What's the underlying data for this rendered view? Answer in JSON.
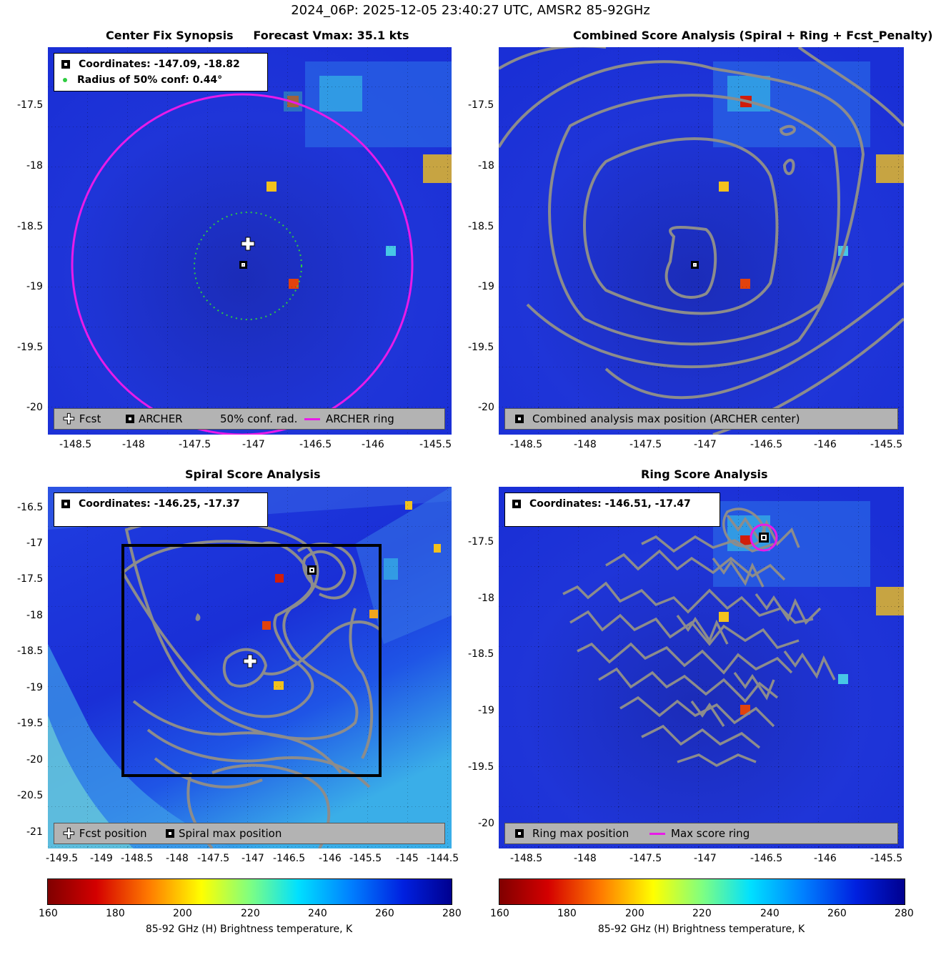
{
  "title": "2024_06P: 2025-12-05 23:40:27 UTC, AMSR2 85-92GHz",
  "colors": {
    "background_field": "#1a2fd6",
    "contour": "#8c8c8c",
    "archer_ring": "#e81be8",
    "conf_circle": "#2ecc40",
    "legend_bg": "#b3b3b3"
  },
  "panels": {
    "synopsis": {
      "title": "Center Fix Synopsis     Forecast Vmax: 35.1 kts",
      "coords_text": "Coordinates: -147.09, -18.82",
      "radius_text": "Radius of 50% conf: 0.44°",
      "legend": {
        "fcst": "Fcst",
        "archer": "ARCHER",
        "conf": "50% conf. rad.",
        "ring": "ARCHER ring"
      },
      "x_ticks": [
        "-148.5",
        "-148",
        "-147.5",
        "-147",
        "-146.5",
        "-146",
        "-145.5"
      ],
      "y_ticks": [
        "-17.5",
        "-18",
        "-18.5",
        "-19",
        "-19.5",
        "-20"
      ]
    },
    "combined": {
      "title": "Combined Score Analysis (Spiral + Ring + Fcst_Penalty)",
      "legend": {
        "max": "Combined analysis max position (ARCHER center)"
      },
      "x_ticks": [
        "-148.5",
        "-148",
        "-147.5",
        "-147",
        "-146.5",
        "-146",
        "-145.5"
      ],
      "y_ticks": [
        "-17.5",
        "-18",
        "-18.5",
        "-19",
        "-19.5",
        "-20"
      ]
    },
    "spiral": {
      "title": "Spiral Score Analysis",
      "coords_text": "Coordinates: -146.25, -17.37",
      "legend": {
        "fcst": "Fcst position",
        "max": "Spiral max position"
      },
      "x_ticks": [
        "-149.5",
        "-149",
        "-148.5",
        "-148",
        "-147.5",
        "-147",
        "-146.5",
        "-146",
        "-145.5",
        "-145",
        "-144.5"
      ],
      "y_ticks": [
        "-16.5",
        "-17",
        "-17.5",
        "-18",
        "-18.5",
        "-19",
        "-19.5",
        "-20",
        "-20.5",
        "-21"
      ]
    },
    "ring": {
      "title": "Ring Score Analysis",
      "coords_text": "Coordinates: -146.51, -17.47",
      "legend": {
        "max": "Ring max position",
        "ring": "Max score ring"
      },
      "x_ticks": [
        "-148.5",
        "-148",
        "-147.5",
        "-147",
        "-146.5",
        "-146",
        "-145.5"
      ],
      "y_ticks": [
        "-17.5",
        "-18",
        "-18.5",
        "-19",
        "-19.5",
        "-20"
      ]
    }
  },
  "colorbar": {
    "ticks": [
      "160",
      "180",
      "200",
      "220",
      "240",
      "260",
      "280"
    ],
    "label": "85-92 GHz (H) Brightness temperature, K"
  },
  "chart_data": [
    {
      "type": "heatmap",
      "title": "Center Fix Synopsis     Forecast Vmax: 35.1 kts",
      "xlim": [
        -148.8,
        -145.4
      ],
      "ylim": [
        -20.2,
        -17.1
      ],
      "archer_center": [
        -147.09,
        -18.82
      ],
      "fcst_position": [
        -147.04,
        -18.62
      ],
      "conf_radius_deg": 0.44,
      "archer_ring_radius_deg": 1.4,
      "colorbar_range_K": [
        160,
        280
      ]
    },
    {
      "type": "heatmap",
      "title": "Combined Score Analysis (Spiral + Ring + Fcst_Penalty)",
      "xlim": [
        -148.8,
        -145.4
      ],
      "ylim": [
        -20.2,
        -17.1
      ],
      "max_position": [
        -147.09,
        -18.82
      ]
    },
    {
      "type": "heatmap",
      "title": "Spiral Score Analysis",
      "xlim": [
        -149.6,
        -144.4
      ],
      "ylim": [
        -21.2,
        -16.3
      ],
      "max_position": [
        -146.25,
        -17.37
      ],
      "fcst_position": [
        -147.04,
        -18.62
      ],
      "search_box": [
        [
          -148.6,
          -17.0
        ],
        [
          -145.3,
          -20.2
        ]
      ]
    },
    {
      "type": "heatmap",
      "title": "Ring Score Analysis",
      "xlim": [
        -148.8,
        -145.4
      ],
      "ylim": [
        -20.2,
        -17.1
      ],
      "max_position": [
        -146.51,
        -17.47
      ]
    }
  ]
}
